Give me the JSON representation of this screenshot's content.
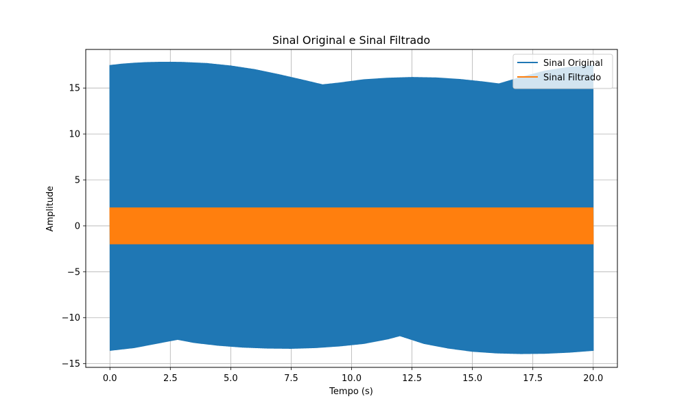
{
  "chart_data": {
    "type": "line",
    "title": "Sinal Original e Sinal Filtrado",
    "xlabel": "Tempo (s)",
    "ylabel": "Amplitude",
    "xlim": [
      -1.0,
      21.0
    ],
    "ylim": [
      -15.4,
      19.2
    ],
    "xticks": [
      0.0,
      2.5,
      5.0,
      7.5,
      10.0,
      12.5,
      15.0,
      17.5,
      20.0
    ],
    "xtick_labels": [
      "0.0",
      "2.5",
      "5.0",
      "7.5",
      "10.0",
      "12.5",
      "15.0",
      "17.5",
      "20.0"
    ],
    "yticks": [
      -15,
      -10,
      -5,
      0,
      5,
      10,
      15
    ],
    "ytick_labels": [
      "−15",
      "−10",
      "−5",
      "0",
      "5",
      "10",
      "15"
    ],
    "grid": true,
    "legend_position": "top-right",
    "series": [
      {
        "name": "Sinal Original",
        "color": "#1f77b4",
        "render": "dense-oscillation-band",
        "upper_envelope": {
          "x": [
            0.0,
            0.5,
            1.0,
            1.5,
            2.0,
            2.5,
            3.0,
            4.0,
            5.0,
            6.0,
            7.0,
            8.0,
            8.8,
            9.5,
            10.5,
            11.5,
            12.5,
            13.5,
            14.5,
            15.5,
            16.1,
            17.0,
            18.0,
            19.0,
            20.0
          ],
          "y": [
            17.5,
            17.65,
            17.75,
            17.82,
            17.85,
            17.86,
            17.84,
            17.72,
            17.45,
            17.05,
            16.5,
            15.9,
            15.4,
            15.6,
            15.95,
            16.12,
            16.2,
            16.15,
            15.98,
            15.7,
            15.5,
            16.2,
            16.9,
            17.3,
            17.5
          ]
        },
        "lower_envelope": {
          "x": [
            0.0,
            1.0,
            2.0,
            2.8,
            3.5,
            4.5,
            5.5,
            6.5,
            7.5,
            8.5,
            9.5,
            10.5,
            11.5,
            12.0,
            13.0,
            14.0,
            15.0,
            16.0,
            17.0,
            18.0,
            19.0,
            20.0
          ],
          "y": [
            -13.6,
            -13.3,
            -12.8,
            -12.4,
            -12.75,
            -13.05,
            -13.25,
            -13.35,
            -13.38,
            -13.3,
            -13.12,
            -12.85,
            -12.35,
            -12.0,
            -12.85,
            -13.35,
            -13.7,
            -13.88,
            -13.95,
            -13.92,
            -13.8,
            -13.6
          ]
        }
      },
      {
        "name": "Sinal Filtrado",
        "color": "#ff7f0e",
        "render": "dense-oscillation-band",
        "upper_envelope": {
          "x": [
            0.0,
            20.0
          ],
          "y": [
            2.0,
            2.0
          ]
        },
        "lower_envelope": {
          "x": [
            0.0,
            20.0
          ],
          "y": [
            -2.0,
            -2.0
          ]
        }
      }
    ]
  }
}
